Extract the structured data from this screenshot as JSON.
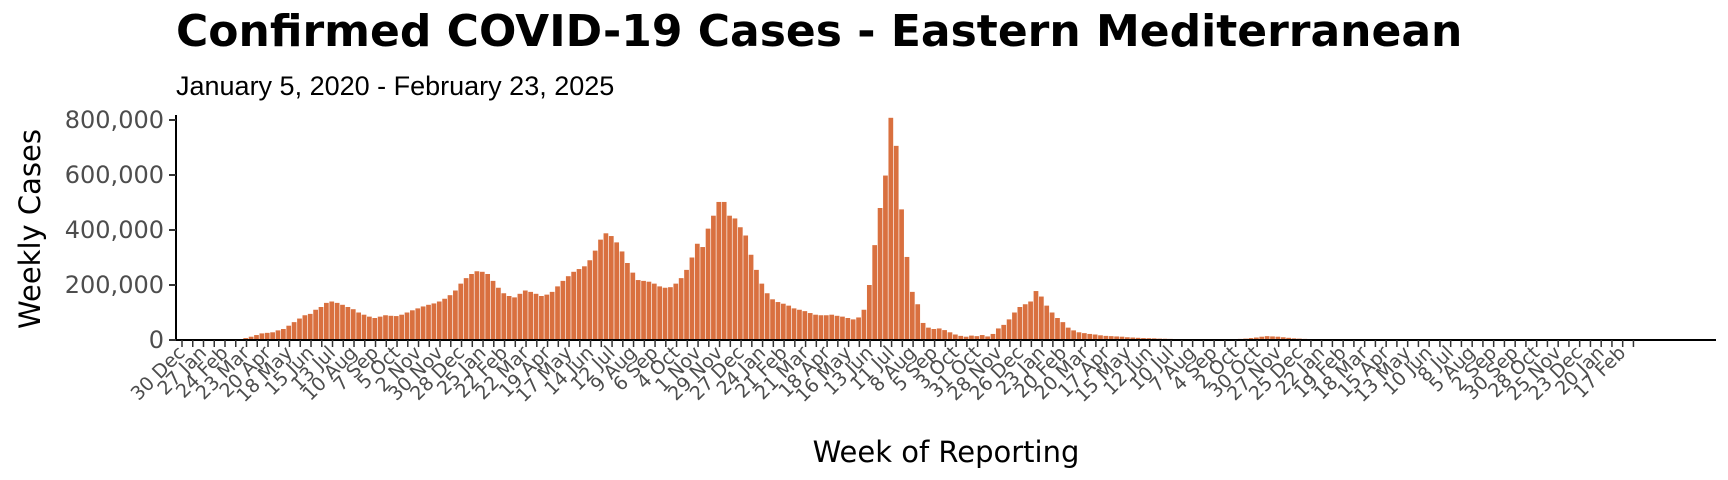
{
  "chart_data": {
    "type": "bar",
    "title": "Confirmed COVID-19 Cases - Eastern Mediterranean",
    "subtitle": "January 5, 2020 - February 23, 2025",
    "xlabel": "Week of Reporting",
    "ylabel": "Weekly Cases",
    "ylim": [
      0,
      800000
    ],
    "yticks": [
      0,
      200000,
      400000,
      600000,
      800000
    ],
    "ytick_labels": [
      "0",
      "200,000",
      "400,000",
      "600,000",
      "800,000"
    ],
    "x_start": "2020-01-05",
    "x_end": "2025-02-23",
    "x_tick_labels": [
      "30 Dec",
      "27 Jan",
      "24 Feb",
      "23 Mar",
      "20 Apr",
      "18 May",
      "15 Jun",
      "13 Jul",
      "10 Aug",
      "7 Sep",
      "5 Oct",
      "2 Nov",
      "30 Nov",
      "28 Dec",
      "25 Jan",
      "22 Feb",
      "22 Mar",
      "19 Apr",
      "17 May",
      "14 Jun",
      "12 Jul",
      "9 Aug",
      "6 Sep",
      "4 Oct",
      "1 Nov",
      "29 Nov",
      "27 Dec",
      "24 Jan",
      "21 Feb",
      "21 Mar",
      "18 Apr",
      "16 May",
      "13 Jun",
      "11 Jul",
      "8 Aug",
      "5 Sep",
      "3 Oct",
      "31 Oct",
      "28 Nov",
      "26 Dec",
      "23 Jan",
      "20 Feb",
      "20 Mar",
      "17 Apr",
      "15 May",
      "12 Jun",
      "10 Jul",
      "7 Aug",
      "4 Sep",
      "2 Oct",
      "30 Oct",
      "27 Nov",
      "25 Dec",
      "22 Jan",
      "19 Feb",
      "18 Mar",
      "15 Apr",
      "13 May",
      "10 Jun",
      "8 Jul",
      "5 Aug",
      "2 Sep",
      "30 Sep",
      "28 Oct",
      "25 Nov",
      "23 Dec",
      "20 Jan",
      "17 Feb"
    ],
    "grid": false,
    "legend": "none",
    "bar_color": "#d9703f",
    "values": [
      0,
      0,
      0,
      0,
      0,
      0,
      0,
      0,
      500,
      1000,
      3000,
      7000,
      12000,
      18000,
      24000,
      26000,
      28000,
      35000,
      40000,
      52000,
      65000,
      78000,
      90000,
      95000,
      110000,
      120000,
      135000,
      140000,
      135000,
      128000,
      120000,
      112000,
      100000,
      92000,
      85000,
      80000,
      85000,
      90000,
      88000,
      87000,
      92000,
      100000,
      108000,
      115000,
      122000,
      128000,
      133000,
      140000,
      150000,
      163000,
      180000,
      205000,
      225000,
      240000,
      250000,
      248000,
      240000,
      215000,
      190000,
      170000,
      160000,
      155000,
      168000,
      180000,
      175000,
      168000,
      160000,
      165000,
      175000,
      195000,
      215000,
      232000,
      248000,
      258000,
      268000,
      290000,
      325000,
      365000,
      388000,
      378000,
      355000,
      322000,
      280000,
      245000,
      218000,
      215000,
      212000,
      205000,
      195000,
      190000,
      192000,
      205000,
      225000,
      255000,
      300000,
      350000,
      338000,
      405000,
      452000,
      502000,
      502000,
      452000,
      442000,
      410000,
      380000,
      310000,
      255000,
      205000,
      170000,
      148000,
      138000,
      132000,
      125000,
      115000,
      110000,
      105000,
      98000,
      92000,
      90000,
      90000,
      92000,
      88000,
      85000,
      80000,
      75000,
      82000,
      110000,
      200000,
      345000,
      480000,
      598000,
      808000,
      706000,
      475000,
      302000,
      175000,
      130000,
      62000,
      45000,
      40000,
      42000,
      36000,
      28000,
      20000,
      15000,
      12000,
      16000,
      14000,
      18000,
      13000,
      22000,
      42000,
      55000,
      75000,
      100000,
      120000,
      130000,
      140000,
      178000,
      158000,
      125000,
      100000,
      80000,
      65000,
      45000,
      35000,
      28000,
      25000,
      22000,
      20000,
      17000,
      15000,
      14000,
      13000,
      12000,
      10000,
      9000,
      8000,
      7000,
      6500,
      6000,
      5000,
      4500,
      4000,
      3500,
      3000,
      3000,
      2800,
      2500,
      2500,
      2500,
      2500,
      2500,
      3000,
      3000,
      3500,
      4000,
      5000,
      7000,
      9000,
      12000,
      14000,
      13000,
      12000,
      10000,
      8000,
      6000,
      5000,
      4000,
      3500,
      3000,
      2500,
      2000,
      1500,
      1200,
      1000,
      900,
      800,
      700,
      600,
      500,
      500,
      400,
      400,
      300,
      300,
      300,
      200,
      200,
      200,
      200,
      200,
      200,
      150,
      150,
      150,
      150,
      150,
      150,
      100,
      100,
      100,
      100,
      100,
      100,
      100,
      100,
      100,
      100,
      100,
      100,
      100,
      100,
      100,
      100,
      100,
      100,
      100,
      100,
      100,
      100,
      100,
      100,
      100,
      100,
      100,
      100,
      100,
      100,
      100,
      100,
      100,
      100,
      100,
      100,
      100,
      100,
      100,
      100,
      100,
      100,
      100,
      100
    ]
  }
}
